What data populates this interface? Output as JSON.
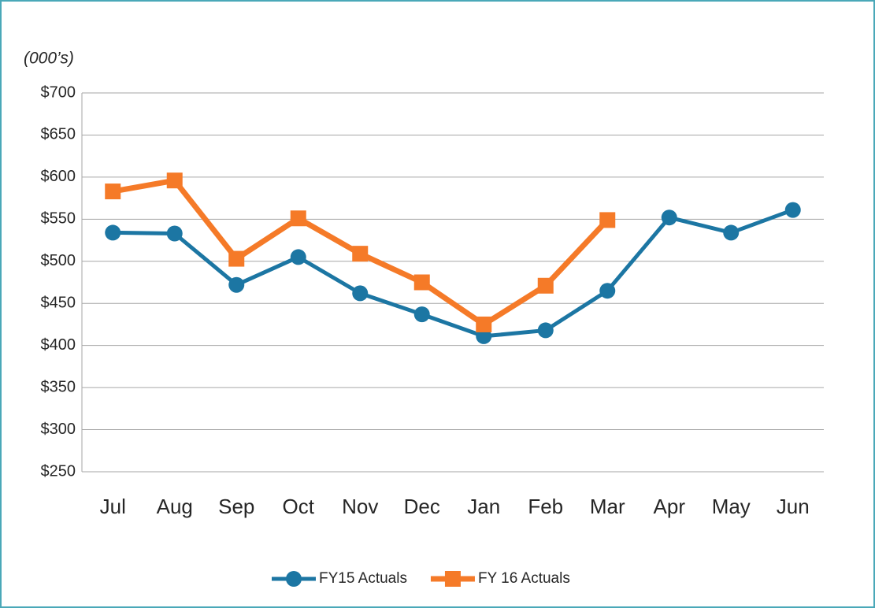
{
  "chart_data": {
    "type": "line",
    "annotation": "(000’s)",
    "categories": [
      "Jul",
      "Aug",
      "Sep",
      "Oct",
      "Nov",
      "Dec",
      "Jan",
      "Feb",
      "Mar",
      "Apr",
      "May",
      "Jun"
    ],
    "series": [
      {
        "name": "FY15 Actuals",
        "color": "#1c76a3",
        "marker": "circle",
        "values": [
          534,
          533,
          472,
          505,
          462,
          437,
          411,
          418,
          465,
          552,
          534,
          561
        ]
      },
      {
        "name": "FY 16 Actuals",
        "color": "#f57a28",
        "marker": "square",
        "values": [
          583,
          596,
          503,
          551,
          509,
          475,
          425,
          471,
          549,
          null,
          null,
          null
        ]
      }
    ],
    "ylim": [
      250,
      700
    ],
    "yticks": [
      {
        "value": 250,
        "label": "$250"
      },
      {
        "value": 300,
        "label": "$300"
      },
      {
        "value": 350,
        "label": "$350"
      },
      {
        "value": 400,
        "label": "$400"
      },
      {
        "value": 450,
        "label": "$450"
      },
      {
        "value": 500,
        "label": "$500"
      },
      {
        "value": 550,
        "label": "$550"
      },
      {
        "value": 600,
        "label": "$600"
      },
      {
        "value": 650,
        "label": "$650"
      },
      {
        "value": 700,
        "label": "$700"
      }
    ],
    "grid": true,
    "legend": "bottom"
  }
}
